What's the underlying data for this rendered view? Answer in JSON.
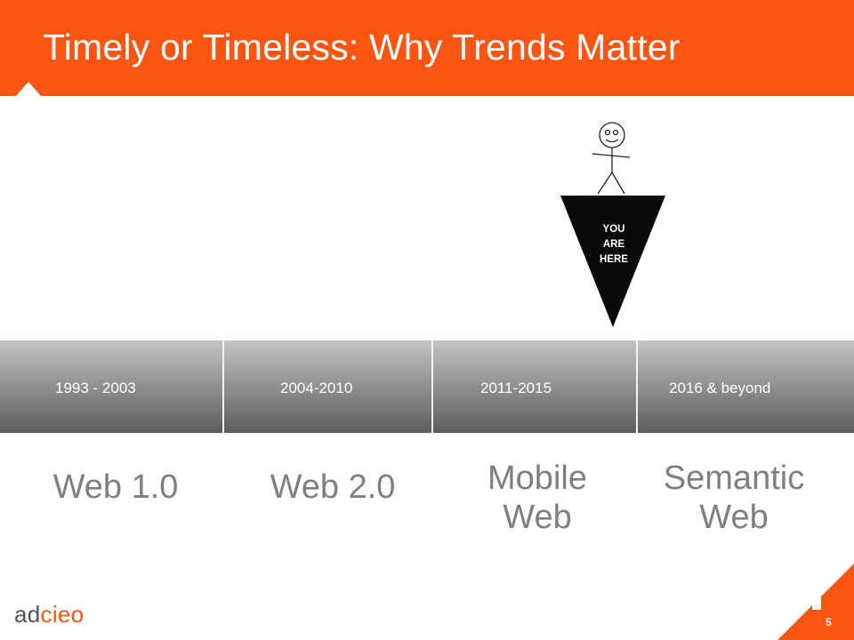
{
  "slide": {
    "title": "Timely or Timeless: Why Trends Matter",
    "page_number": "5",
    "brand_color": "#fb5514"
  },
  "marker": {
    "label": "YOU\nARE\nHERE",
    "icon": "stick-figure-icon"
  },
  "timeline": {
    "periods": [
      "1993 - 2003",
      "2004-2010",
      "2011-2015",
      "2016 & beyond"
    ]
  },
  "eras": [
    "Web 1.0",
    "Web 2.0",
    "Mobile\nWeb",
    "Semantic\nWeb"
  ],
  "footer": {
    "logo_part1": "ad",
    "logo_part2": "cieo"
  }
}
